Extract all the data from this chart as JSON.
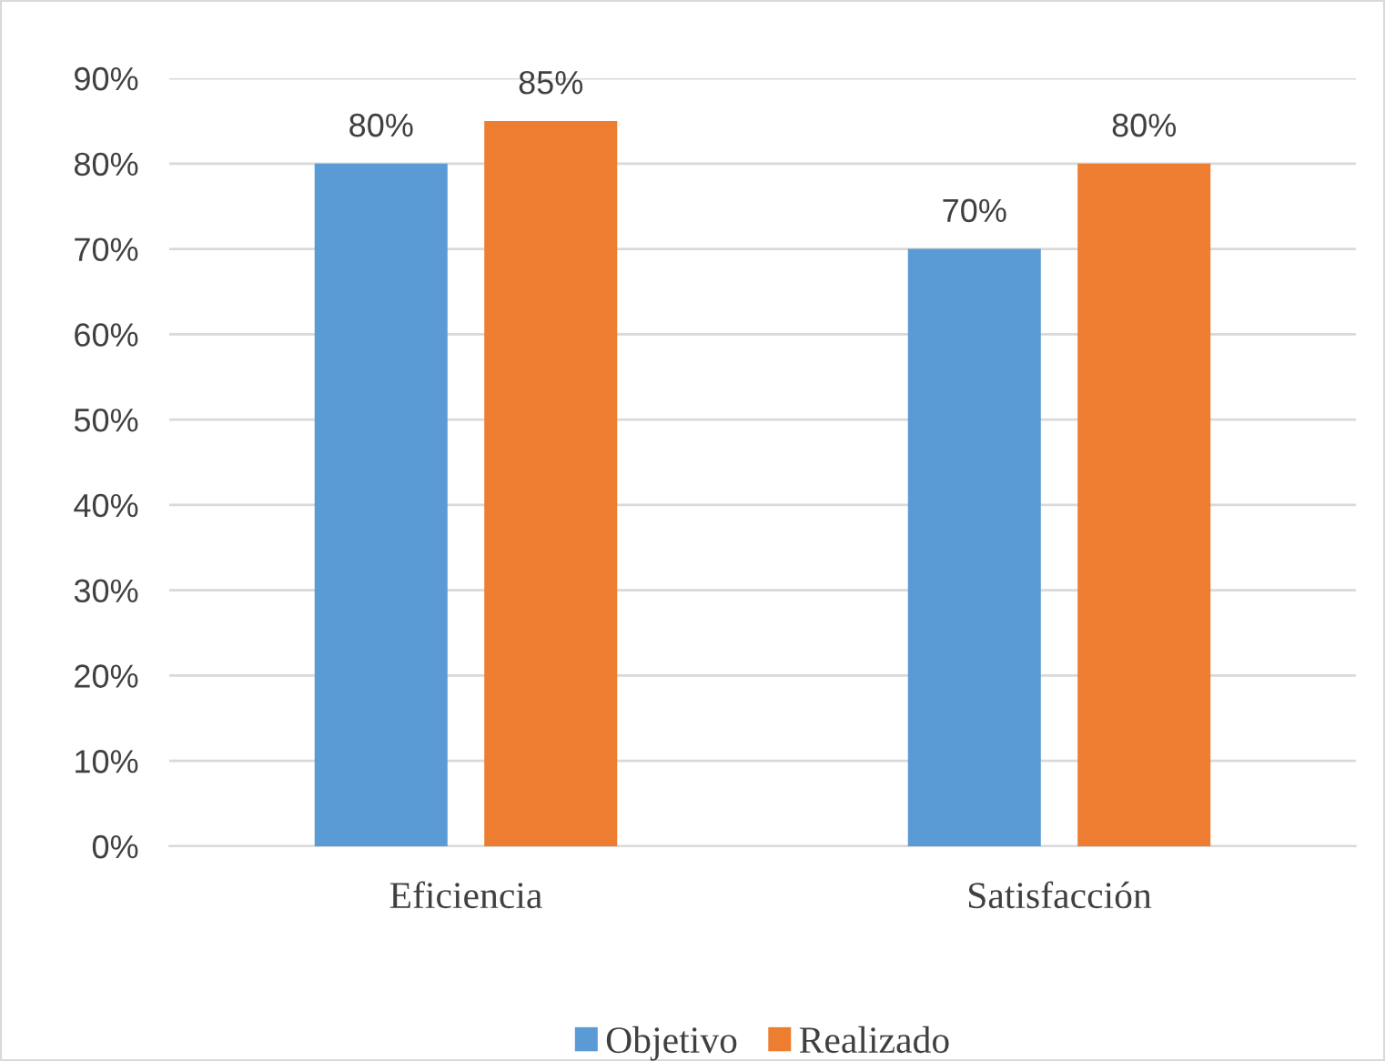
{
  "chart_data": {
    "type": "bar",
    "categories": [
      "Eficiencia",
      "Satisfacción"
    ],
    "series": [
      {
        "name": "Objetivo",
        "color": "#5b9bd5",
        "values": [
          80,
          70
        ],
        "value_labels": [
          "80%",
          "70%"
        ]
      },
      {
        "name": "Realizado",
        "color": "#ed7d31",
        "values": [
          85,
          80
        ],
        "value_labels": [
          "85%",
          "80%"
        ]
      }
    ],
    "ylim": [
      0,
      90
    ],
    "yticks": [
      {
        "value": 0,
        "label": "0%"
      },
      {
        "value": 10,
        "label": "10%"
      },
      {
        "value": 20,
        "label": "20%"
      },
      {
        "value": 30,
        "label": "30%"
      },
      {
        "value": 40,
        "label": "40%"
      },
      {
        "value": 50,
        "label": "50%"
      },
      {
        "value": 60,
        "label": "60%"
      },
      {
        "value": 70,
        "label": "70%"
      },
      {
        "value": 80,
        "label": "80%"
      },
      {
        "value": 90,
        "label": "90%"
      }
    ],
    "grid": "y",
    "legend": "bottom"
  }
}
